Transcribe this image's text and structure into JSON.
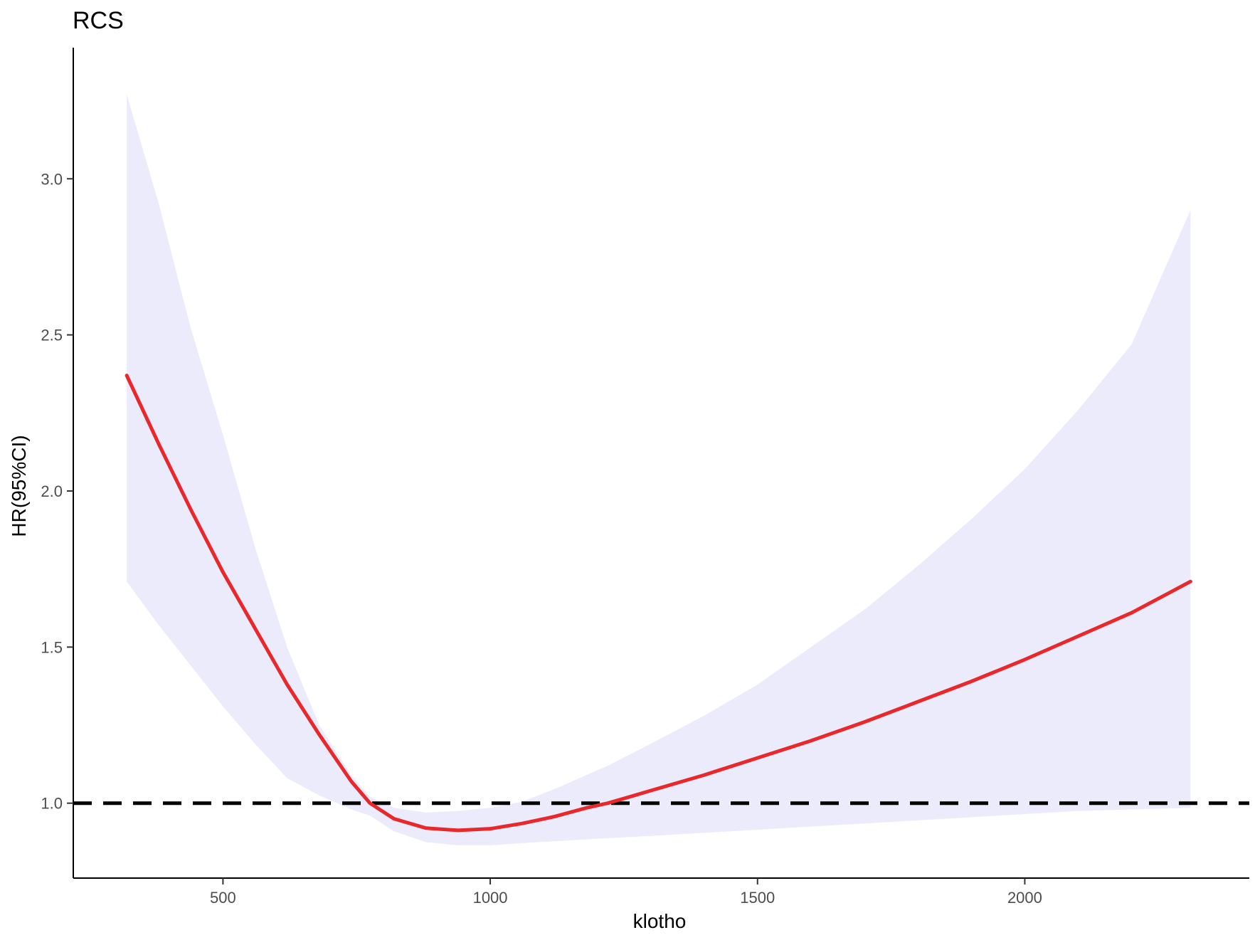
{
  "chart_data": {
    "type": "line",
    "title": "RCS",
    "xlabel": "klotho",
    "ylabel": "HR(95%CI)",
    "xlim": [
      220,
      2420
    ],
    "ylim": [
      0.76,
      3.42
    ],
    "x_ticks": [
      500,
      1000,
      1500,
      2000
    ],
    "x_tick_labels": [
      "500",
      "1000",
      "1500",
      "2000"
    ],
    "y_ticks": [
      1.0,
      1.5,
      2.0,
      2.5,
      3.0
    ],
    "y_tick_labels": [
      "1.0",
      "1.5",
      "2.0",
      "2.5",
      "3.0"
    ],
    "grid": false,
    "legend": "none",
    "reference_line": {
      "y": 1.0,
      "style": "dashed",
      "color": "#000000"
    },
    "series": [
      {
        "x": [
          320,
          380,
          440,
          500,
          560,
          620,
          680,
          740,
          775,
          820,
          880,
          940,
          1000,
          1060,
          1120,
          1180,
          1220,
          1300,
          1400,
          1500,
          1600,
          1700,
          1800,
          1900,
          2000,
          2100,
          2200,
          2310
        ],
        "y": [
          2.37,
          2.15,
          1.94,
          1.74,
          1.56,
          1.38,
          1.22,
          1.07,
          1.0,
          0.95,
          0.92,
          0.913,
          0.918,
          0.935,
          0.957,
          0.985,
          1.0,
          1.04,
          1.09,
          1.145,
          1.2,
          1.26,
          1.325,
          1.39,
          1.46,
          1.535,
          1.61,
          1.71
        ],
        "lower": [
          1.71,
          1.57,
          1.44,
          1.31,
          1.19,
          1.08,
          1.025,
          0.98,
          0.96,
          0.91,
          0.875,
          0.865,
          0.865,
          0.872,
          0.878,
          0.884,
          0.888,
          0.895,
          0.905,
          0.915,
          0.925,
          0.935,
          0.945,
          0.955,
          0.965,
          0.975,
          0.98,
          0.985
        ],
        "upper": [
          3.27,
          2.92,
          2.52,
          2.18,
          1.82,
          1.5,
          1.25,
          1.09,
          1.02,
          0.985,
          0.97,
          0.975,
          0.985,
          1.005,
          1.045,
          1.09,
          1.12,
          1.19,
          1.28,
          1.38,
          1.5,
          1.62,
          1.76,
          1.91,
          2.07,
          2.26,
          2.47,
          2.9
        ],
        "line_color": "#e8282b",
        "band_color": "#ebebfc"
      }
    ]
  }
}
